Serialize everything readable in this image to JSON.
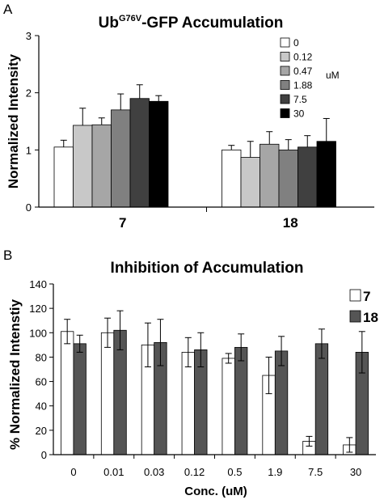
{
  "chart_data": [
    {
      "panel": "A",
      "type": "bar",
      "title_main": "Ub",
      "title_sup": "G76V",
      "title_rest": "-GFP Accumulation",
      "ylabel": "Normalized Intensity",
      "xlabel": "",
      "ylim": [
        0,
        3
      ],
      "yticks": [
        0,
        1,
        2,
        3
      ],
      "categories": [
        "7",
        "18"
      ],
      "legend_unit": "uM",
      "legend_position": "top-right",
      "grid": false,
      "series": [
        {
          "name": "0",
          "color": "#ffffff",
          "values": [
            1.05,
            1.0
          ],
          "errors": [
            0.12,
            0.08
          ]
        },
        {
          "name": "0.12",
          "color": "#c8c8c8",
          "values": [
            1.43,
            0.87
          ],
          "errors": [
            0.3,
            0.28
          ]
        },
        {
          "name": "0.47",
          "color": "#a6a6a6",
          "values": [
            1.44,
            1.1
          ],
          "errors": [
            0.12,
            0.22
          ]
        },
        {
          "name": "1.88",
          "color": "#808080",
          "values": [
            1.7,
            1.0
          ],
          "errors": [
            0.28,
            0.18
          ]
        },
        {
          "name": "7.5",
          "color": "#404040",
          "values": [
            1.9,
            1.05
          ],
          "errors": [
            0.24,
            0.2
          ]
        },
        {
          "name": "30",
          "color": "#000000",
          "values": [
            1.85,
            1.15
          ],
          "errors": [
            0.1,
            0.4
          ]
        }
      ]
    },
    {
      "panel": "B",
      "type": "bar",
      "title": "Inhibition of Accumulation",
      "ylabel": "% Normalized Intenstiy",
      "xlabel": "Conc. (uM)",
      "ylim": [
        0,
        140
      ],
      "yticks": [
        0,
        20,
        40,
        60,
        80,
        100,
        120,
        140
      ],
      "categories": [
        "0",
        "0.01",
        "0.03",
        "0.12",
        "0.5",
        "1.9",
        "7.5",
        "30"
      ],
      "legend_position": "top-right",
      "grid": false,
      "series": [
        {
          "name": "7",
          "color": "#ffffff",
          "values": [
            101,
            100,
            90,
            84,
            79,
            65,
            11,
            8
          ],
          "errors": [
            10,
            12,
            18,
            12,
            4,
            15,
            4,
            6
          ]
        },
        {
          "name": "18",
          "color": "#555555",
          "values": [
            91,
            102,
            92,
            86,
            88,
            85,
            91,
            84
          ],
          "errors": [
            7,
            16,
            19,
            14,
            11,
            12,
            12,
            17
          ]
        }
      ]
    }
  ]
}
